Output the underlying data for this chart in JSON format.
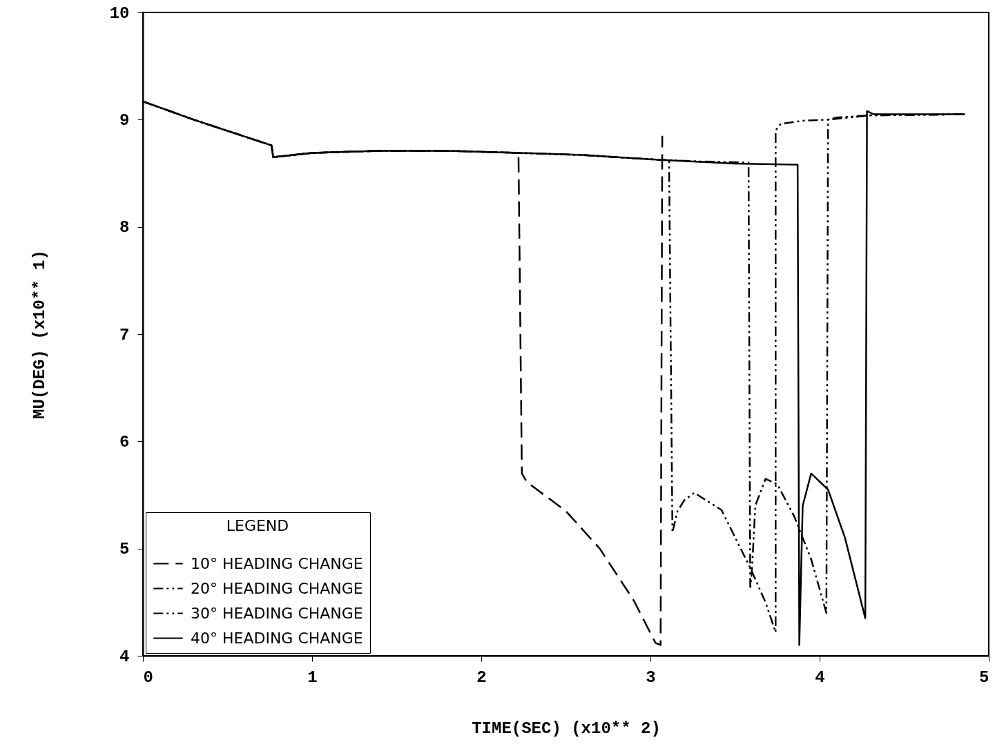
{
  "chart_data": {
    "type": "line",
    "xlabel": "TIME(SEC)        (x10** 2)",
    "ylabel": "MU(DEG)    (x10** 1)",
    "legend_title": "LEGEND",
    "xlim": [
      0,
      5
    ],
    "xticks": [
      0,
      1,
      2,
      3,
      4,
      5
    ],
    "ylim": [
      4,
      10
    ],
    "yticks": [
      4,
      5,
      6,
      7,
      8,
      9,
      10
    ],
    "grid": false,
    "legend": "bottom left",
    "marker": "none",
    "series": [
      {
        "name": "10° HEADING CHANGE",
        "color": "#000000",
        "line_style": "dashed",
        "x": [
          0,
          0.3,
          0.76,
          0.77,
          1.0,
          1.4,
          1.8,
          2.22,
          2.24,
          2.27,
          2.5,
          2.7,
          2.9,
          3.03,
          3.06,
          3.07
        ],
        "values": [
          9.17,
          9.0,
          8.76,
          8.65,
          8.69,
          8.71,
          8.71,
          8.69,
          5.7,
          5.62,
          5.35,
          5.0,
          4.52,
          4.12,
          4.1,
          8.85
        ]
      },
      {
        "name": "20° HEADING CHANGE",
        "color": "#000000",
        "line_style": "dotted",
        "x": [
          0,
          0.3,
          0.76,
          0.77,
          1.0,
          1.4,
          1.8,
          2.22,
          2.6,
          3.0,
          3.11,
          3.13,
          3.16,
          3.2,
          3.26,
          3.42,
          3.59,
          3.68,
          3.74,
          3.74,
          3.77,
          3.9,
          4.05,
          4.3,
          4.86
        ],
        "values": [
          9.17,
          9.0,
          8.76,
          8.65,
          8.69,
          8.71,
          8.71,
          8.69,
          8.67,
          8.63,
          8.62,
          5.15,
          5.35,
          5.45,
          5.52,
          5.36,
          4.82,
          4.5,
          4.22,
          8.9,
          8.96,
          8.99,
          9.0,
          9.04,
          9.05
        ]
      },
      {
        "name": "30° HEADING CHANGE",
        "color": "#000000",
        "line_style": "dotted",
        "x": [
          0,
          0.3,
          0.76,
          0.77,
          1.0,
          1.4,
          1.8,
          2.22,
          2.6,
          3.0,
          3.3,
          3.58,
          3.59,
          3.6,
          3.62,
          3.68,
          3.75,
          3.85,
          3.95,
          4.04,
          4.05,
          4.1,
          4.3,
          4.86
        ],
        "values": [
          9.17,
          9.0,
          8.76,
          8.65,
          8.69,
          8.71,
          8.71,
          8.69,
          8.67,
          8.63,
          8.61,
          8.6,
          4.62,
          4.8,
          5.4,
          5.65,
          5.6,
          5.3,
          4.9,
          4.4,
          9.0,
          9.02,
          9.04,
          9.05
        ]
      },
      {
        "name": "40° HEADING CHANGE",
        "color": "#000000",
        "line_style": "solid",
        "x": [
          0,
          0.3,
          0.76,
          0.77,
          1.0,
          1.4,
          1.8,
          2.22,
          2.6,
          3.0,
          3.5,
          3.87,
          3.88,
          3.9,
          3.95,
          4.05,
          4.15,
          4.27,
          4.28,
          4.32,
          4.86
        ],
        "values": [
          9.17,
          9.0,
          8.76,
          8.65,
          8.69,
          8.71,
          8.71,
          8.69,
          8.67,
          8.63,
          8.59,
          8.58,
          4.1,
          5.4,
          5.7,
          5.55,
          5.1,
          4.35,
          9.08,
          9.05,
          9.05
        ]
      }
    ]
  }
}
